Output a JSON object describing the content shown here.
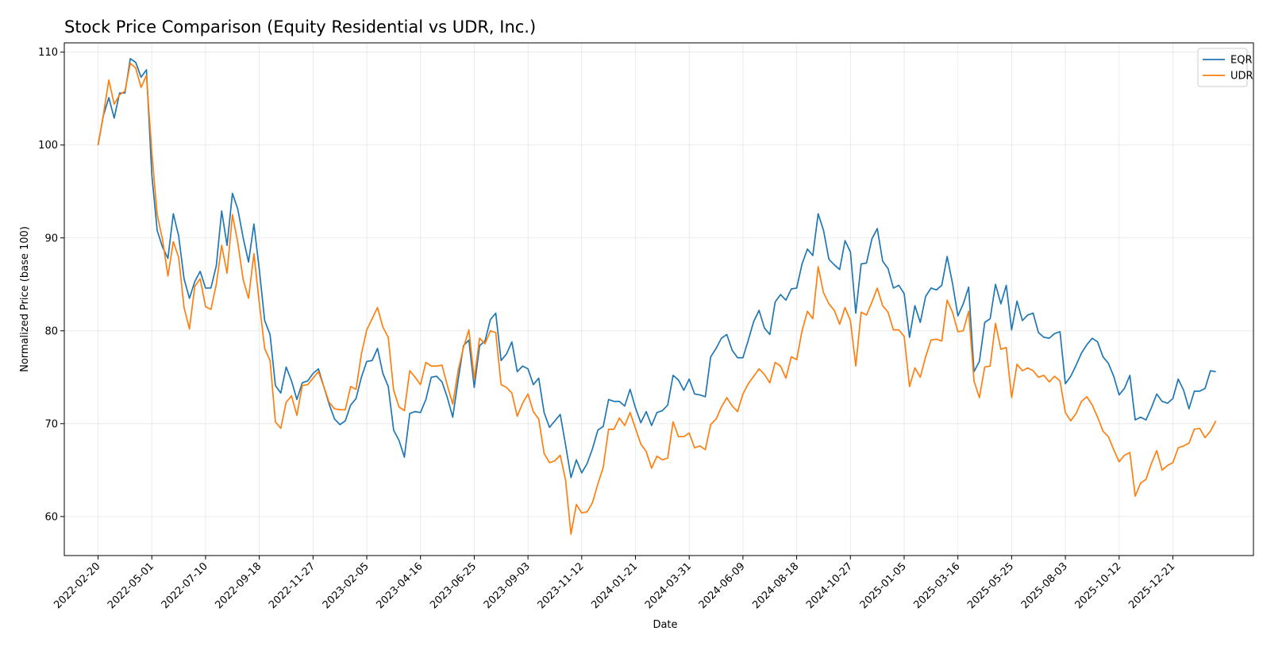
{
  "chart_data": {
    "type": "line",
    "title": "Stock Price Comparison (Equity Residential vs UDR, Inc.)",
    "xlabel": "Date",
    "ylabel": "Normalized Price (base 100)",
    "xlim": [
      "2022-01-07",
      "2026-04-05"
    ],
    "ylim": [
      55.8,
      111.0
    ],
    "yticks": [
      60,
      70,
      80,
      90,
      100,
      110
    ],
    "xticks": [
      "2022-02-20",
      "2022-05-01",
      "2022-07-10",
      "2022-09-18",
      "2022-11-27",
      "2023-02-05",
      "2023-04-16",
      "2023-06-25",
      "2023-09-03",
      "2023-11-12",
      "2024-01-21",
      "2024-03-31",
      "2024-06-09",
      "2024-08-18",
      "2024-10-27",
      "2025-01-05",
      "2025-03-16",
      "2025-05-25",
      "2025-08-03",
      "2025-10-12",
      "2025-12-21"
    ],
    "grid": true,
    "legend": "upper right",
    "start_date": "2022-02-20",
    "step_days": 7,
    "series": [
      {
        "name": "EQR",
        "color": "#1f77b4",
        "values": [
          100.0,
          103.2,
          105.1,
          102.9,
          105.6,
          105.6,
          109.3,
          108.9,
          107.3,
          108.1,
          96.8,
          90.8,
          89.0,
          87.8,
          92.6,
          90.2,
          85.6,
          83.5,
          85.3,
          86.4,
          84.6,
          84.6,
          87.0,
          92.9,
          89.2,
          94.8,
          93.1,
          90.0,
          87.4,
          91.5,
          86.6,
          81.1,
          79.6,
          74.1,
          73.3,
          76.1,
          74.6,
          72.6,
          74.4,
          74.6,
          75.4,
          75.9,
          74.0,
          72.1,
          70.5,
          69.9,
          70.3,
          72.0,
          72.7,
          75.0,
          76.7,
          76.8,
          78.1,
          75.4,
          74.0,
          69.3,
          68.2,
          66.4,
          71.1,
          71.3,
          71.2,
          72.6,
          75.0,
          75.1,
          74.5,
          72.8,
          70.7,
          74.7,
          78.4,
          79.0,
          73.9,
          78.4,
          78.9,
          81.2,
          81.9,
          76.8,
          77.5,
          78.8,
          75.6,
          76.2,
          75.9,
          74.2,
          74.9,
          71.2,
          69.6,
          70.3,
          71.0,
          67.7,
          64.2,
          66.1,
          64.7,
          65.7,
          67.3,
          69.3,
          69.7,
          72.6,
          72.4,
          72.4,
          71.9,
          73.7,
          71.7,
          70.1,
          71.3,
          69.8,
          71.2,
          71.4,
          72.0,
          75.2,
          74.7,
          73.6,
          74.8,
          73.2,
          73.1,
          72.9,
          77.2,
          78.1,
          79.2,
          79.6,
          77.9,
          77.1,
          77.1,
          79.0,
          81.0,
          82.2,
          80.3,
          79.6,
          83.1,
          83.9,
          83.3,
          84.5,
          84.6,
          87.2,
          88.8,
          88.1,
          92.6,
          90.8,
          87.7,
          87.1,
          86.6,
          89.7,
          88.5,
          81.9,
          87.2,
          87.3,
          89.9,
          91.0,
          87.5,
          86.7,
          84.6,
          84.9,
          84.0,
          79.3,
          82.7,
          80.9,
          83.7,
          84.6,
          84.4,
          84.9,
          88.0,
          85.1,
          81.6,
          82.9,
          84.7,
          75.6,
          76.7,
          80.9,
          81.3,
          85.0,
          82.9,
          84.9,
          80.1,
          83.2,
          81.1,
          81.7,
          81.9,
          79.8,
          79.3,
          79.2,
          79.7,
          79.9,
          74.3,
          75.1,
          76.3,
          77.6,
          78.5,
          79.2,
          78.8,
          77.2,
          76.5,
          75.1,
          73.1,
          73.8,
          75.2,
          70.4,
          70.7,
          70.4,
          71.7,
          73.2,
          72.4,
          72.2,
          72.7,
          74.8,
          73.6,
          71.6,
          73.5,
          73.5,
          73.8,
          75.7,
          75.6
        ]
      },
      {
        "name": "UDR",
        "color": "#ff7f0e",
        "values": [
          100.0,
          103.3,
          107.0,
          104.4,
          105.4,
          105.8,
          108.8,
          108.3,
          106.2,
          107.5,
          99.2,
          92.5,
          89.8,
          85.9,
          89.6,
          87.9,
          82.5,
          80.2,
          84.8,
          85.6,
          82.6,
          82.3,
          85.0,
          89.2,
          86.2,
          92.5,
          89.5,
          85.5,
          83.5,
          88.3,
          83.0,
          78.1,
          76.8,
          70.2,
          69.5,
          72.3,
          73.0,
          70.9,
          74.1,
          74.2,
          74.9,
          75.6,
          74.0,
          72.3,
          71.6,
          71.5,
          71.5,
          74.0,
          73.7,
          77.5,
          80.1,
          81.3,
          82.5,
          80.4,
          79.3,
          73.6,
          71.8,
          71.4,
          75.7,
          75.0,
          74.2,
          76.6,
          76.2,
          76.2,
          76.3,
          74.1,
          72.1,
          75.7,
          78.2,
          80.1,
          74.8,
          79.2,
          78.6,
          80.0,
          79.8,
          74.2,
          73.9,
          73.3,
          70.8,
          72.2,
          73.2,
          71.3,
          70.5,
          66.8,
          65.8,
          66.0,
          66.6,
          63.9,
          58.1,
          61.3,
          60.4,
          60.5,
          61.5,
          63.5,
          65.3,
          69.4,
          69.4,
          70.6,
          69.8,
          71.2,
          69.5,
          67.8,
          67.0,
          65.2,
          66.5,
          66.1,
          66.3,
          70.2,
          68.6,
          68.6,
          69.0,
          67.4,
          67.6,
          67.2,
          69.9,
          70.5,
          71.8,
          72.8,
          71.9,
          71.3,
          73.2,
          74.3,
          75.1,
          75.9,
          75.3,
          74.4,
          76.6,
          76.2,
          74.9,
          77.2,
          76.9,
          80.0,
          82.1,
          81.3,
          86.9,
          84.1,
          82.9,
          82.2,
          80.7,
          82.5,
          81.1,
          76.2,
          82.0,
          81.7,
          83.1,
          84.6,
          82.7,
          82.0,
          80.1,
          80.1,
          79.4,
          74.0,
          76.0,
          75.0,
          77.2,
          79.0,
          79.1,
          78.9,
          83.3,
          82.0,
          79.9,
          80.0,
          82.1,
          74.6,
          72.8,
          76.1,
          76.2,
          80.8,
          78.0,
          78.2,
          72.8,
          76.4,
          75.7,
          76.0,
          75.7,
          75.0,
          75.2,
          74.5,
          75.1,
          74.6,
          71.2,
          70.3,
          71.1,
          72.4,
          72.9,
          72.0,
          70.7,
          69.2,
          68.6,
          67.2,
          65.9,
          66.6,
          66.9,
          62.2,
          63.6,
          64.0,
          65.7,
          67.1,
          65.0,
          65.5,
          65.8,
          67.4,
          67.6,
          67.9,
          69.4,
          69.5,
          68.5,
          69.2,
          70.3
        ]
      }
    ]
  }
}
